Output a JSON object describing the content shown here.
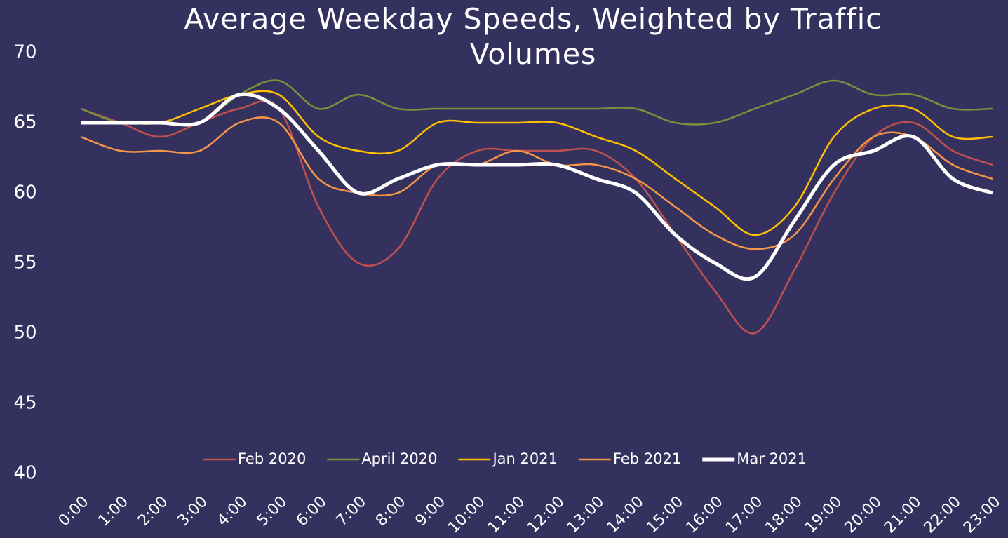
{
  "chart_data": {
    "type": "line",
    "title": "Average Weekday Speeds, Weighted by Traffic Volumes",
    "categories": [
      "0:00",
      "1:00",
      "2:00",
      "3:00",
      "4:00",
      "5:00",
      "6:00",
      "7:00",
      "8:00",
      "9:00",
      "10:00",
      "11:00",
      "12:00",
      "13:00",
      "14:00",
      "15:00",
      "16:00",
      "17:00",
      "18:00",
      "19:00",
      "20:00",
      "21:00",
      "22:00",
      "23:00"
    ],
    "series": [
      {
        "name": "Feb 2020",
        "color": "#c0504d",
        "values": [
          66,
          65,
          64,
          65,
          66,
          66,
          59,
          55,
          56,
          61,
          63,
          63,
          63,
          63,
          61,
          57,
          53,
          50,
          54.5,
          60,
          64,
          65,
          63,
          62
        ]
      },
      {
        "name": "April 2020",
        "color": "#77933c",
        "values": [
          66,
          65,
          65,
          65,
          67,
          68,
          66,
          67,
          66,
          66,
          66,
          66,
          66,
          66,
          66,
          65,
          65,
          66,
          67,
          68,
          67,
          67,
          66,
          66
        ]
      },
      {
        "name": "Jan 2021",
        "color": "#ffc000",
        "values": [
          65,
          65,
          65,
          66,
          67,
          67,
          64,
          63,
          63,
          65,
          65,
          65,
          65,
          64,
          63,
          61,
          59,
          57,
          59,
          64,
          66,
          66,
          64,
          64
        ]
      },
      {
        "name": "Feb 2021",
        "color": "#f79646",
        "values": [
          64,
          63,
          63,
          63,
          65,
          65,
          61,
          60,
          60,
          62,
          62,
          63,
          62,
          62,
          61,
          59,
          57,
          56,
          57,
          61,
          64,
          64,
          62,
          61
        ]
      },
      {
        "name": "Mar 2021",
        "color": "#ffffff",
        "values": [
          65,
          65,
          65,
          65,
          67,
          66,
          63,
          60,
          61,
          62,
          62,
          62,
          62,
          61,
          60,
          57,
          55,
          54,
          58,
          62,
          63,
          64,
          61,
          60
        ]
      }
    ],
    "ylim": [
      40,
      70
    ],
    "yticks": [
      40,
      45,
      50,
      55,
      60,
      65,
      70
    ],
    "legend": "bottom"
  }
}
